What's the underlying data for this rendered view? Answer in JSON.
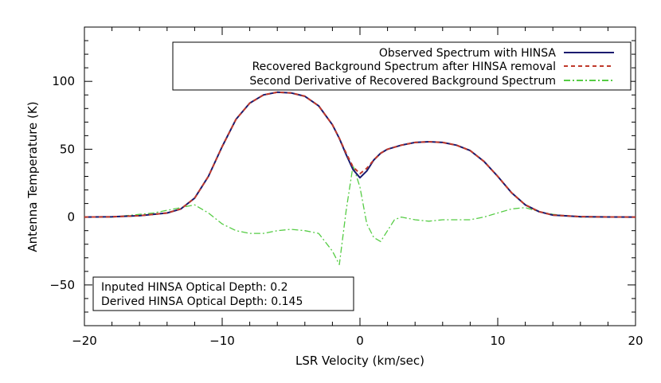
{
  "chart_data": {
    "type": "line",
    "xlabel": "LSR Velocity (km/sec)",
    "ylabel": "Antenna Temperature (K)",
    "xlim": [
      -20,
      20
    ],
    "ylim": [
      -80,
      140
    ],
    "xticks": [
      -20,
      -10,
      0,
      10,
      20
    ],
    "xtick_labels": [
      "−20",
      "−10",
      "0",
      "10",
      "20"
    ],
    "yticks": [
      -50,
      0,
      50,
      100
    ],
    "ytick_labels": [
      "−50",
      "0",
      "50",
      "100"
    ],
    "legend_position": "top-right",
    "series": [
      {
        "name": "Observed Spectrum with HINSA",
        "color": "#1a1a6e",
        "dash": "solid",
        "x": [
          -20,
          -18,
          -16,
          -14,
          -13,
          -12,
          -11,
          -10,
          -9,
          -8,
          -7,
          -6,
          -5,
          -4,
          -3,
          -2,
          -1.5,
          -1,
          -0.5,
          0,
          0.5,
          1,
          1.5,
          2,
          3,
          4,
          5,
          6,
          7,
          8,
          9,
          10,
          11,
          12,
          13,
          14,
          16,
          18,
          20
        ],
        "values": [
          0,
          0.2,
          1,
          3,
          6,
          14,
          30,
          52,
          72,
          84,
          90,
          92,
          91.5,
          89,
          82,
          68,
          58,
          46,
          35,
          29,
          34,
          42,
          47,
          50,
          53,
          55,
          55.5,
          55,
          53,
          49,
          41,
          30,
          18,
          9,
          4,
          1.5,
          0.3,
          0.1,
          0
        ]
      },
      {
        "name": "Recovered Background Spectrum after HINSA removal",
        "color": "#c0392b",
        "dash": "dashed",
        "x": [
          -20,
          -18,
          -16,
          -14,
          -13,
          -12,
          -11,
          -10,
          -9,
          -8,
          -7,
          -6,
          -5,
          -4,
          -3,
          -2,
          -1.5,
          -1,
          -0.5,
          0,
          0.5,
          1,
          1.5,
          2,
          3,
          4,
          5,
          6,
          7,
          8,
          9,
          10,
          11,
          12,
          13,
          14,
          16,
          18,
          20
        ],
        "values": [
          0,
          0.2,
          1,
          3,
          6,
          14,
          30,
          52,
          72,
          84,
          90,
          92,
          91.5,
          89,
          82,
          68,
          58,
          47,
          37,
          32,
          36,
          42,
          47,
          50,
          53,
          55,
          55.5,
          55,
          53,
          49,
          41,
          30,
          18,
          9,
          4,
          1.5,
          0.3,
          0.1,
          0
        ]
      },
      {
        "name": "Second Derivative of Recovered Background Spectrum",
        "color": "#55cc44",
        "dash": "dashdot",
        "x": [
          -20,
          -19,
          -18,
          -17,
          -16,
          -15,
          -14,
          -13,
          -12,
          -11,
          -10,
          -9,
          -8,
          -7,
          -6,
          -5,
          -4,
          -3,
          -2,
          -1.5,
          -1,
          -0.5,
          0,
          0.5,
          1,
          1.5,
          2,
          2.5,
          3,
          4,
          5,
          6,
          7,
          8,
          9,
          10,
          11,
          12,
          13,
          14,
          15,
          16,
          17,
          18,
          19,
          20
        ],
        "values": [
          0,
          0,
          0,
          1,
          2,
          3,
          5,
          7,
          9,
          3,
          -5,
          -10,
          -12,
          -12,
          -10,
          -9,
          -10,
          -12,
          -25,
          -35,
          5,
          38,
          22,
          -5,
          -15,
          -18,
          -10,
          -2,
          0,
          -2,
          -3,
          -2,
          -2,
          -2,
          0,
          3,
          6,
          7,
          4,
          2,
          1,
          0,
          0,
          0,
          0,
          0
        ]
      }
    ]
  },
  "info_box": {
    "line1": "Inputed HINSA Optical Depth: 0.2",
    "line2": "Derived HINSA Optical Depth: 0.145"
  }
}
